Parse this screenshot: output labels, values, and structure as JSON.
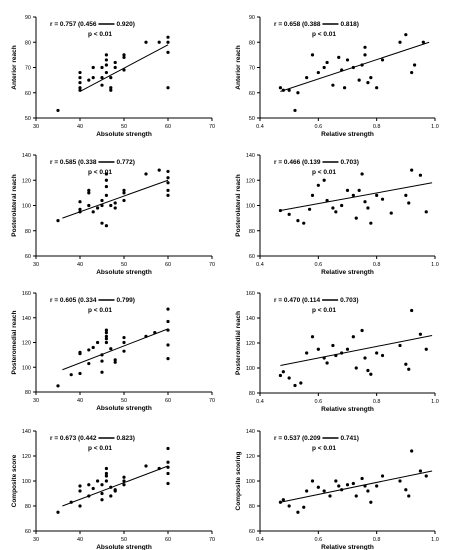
{
  "chart_data": [
    {
      "type": "scatter",
      "xlabel": "Absolute strength",
      "ylabel": "Anterior reach",
      "xlim": [
        30,
        70
      ],
      "ylim": [
        50,
        90
      ],
      "xticks": [
        30,
        40,
        50,
        60,
        70
      ],
      "yticks": [
        50,
        60,
        70,
        80,
        90
      ],
      "stat_r": "r = 0.757 (0.456",
      "stat_ci_hi": "0.920)",
      "stat_p": "p < 0.01",
      "points": [
        [
          35,
          53
        ],
        [
          40,
          61
        ],
        [
          40,
          62
        ],
        [
          40,
          64
        ],
        [
          40,
          66
        ],
        [
          40,
          68
        ],
        [
          42,
          65
        ],
        [
          43,
          66
        ],
        [
          43,
          70
        ],
        [
          45,
          63
        ],
        [
          45,
          66
        ],
        [
          45,
          70
        ],
        [
          46,
          68
        ],
        [
          46,
          71
        ],
        [
          46,
          73
        ],
        [
          46,
          75
        ],
        [
          47,
          61
        ],
        [
          47,
          62
        ],
        [
          47,
          66
        ],
        [
          48,
          70
        ],
        [
          48,
          72
        ],
        [
          50,
          74
        ],
        [
          50,
          75
        ],
        [
          50,
          69
        ],
        [
          55,
          80
        ],
        [
          58,
          80
        ],
        [
          60,
          62
        ],
        [
          60,
          76
        ],
        [
          60,
          80
        ],
        [
          60,
          82
        ]
      ],
      "fit": [
        [
          40,
          60.5
        ],
        [
          60,
          79
        ]
      ]
    },
    {
      "type": "scatter",
      "xlabel": "Relative strength",
      "ylabel": "Anterior reach",
      "xlim": [
        0.4,
        1.0
      ],
      "ylim": [
        50,
        90
      ],
      "xticks": [
        0.4,
        0.6,
        0.8,
        1.0
      ],
      "yticks": [
        50,
        60,
        70,
        80,
        90
      ],
      "stat_r": "r = 0.658 (0.388",
      "stat_ci_hi": "0.818)",
      "stat_p": "p < 0.01",
      "points": [
        [
          0.47,
          62
        ],
        [
          0.48,
          61
        ],
        [
          0.5,
          61
        ],
        [
          0.52,
          53
        ],
        [
          0.53,
          60
        ],
        [
          0.56,
          66
        ],
        [
          0.58,
          75
        ],
        [
          0.6,
          68
        ],
        [
          0.62,
          70
        ],
        [
          0.63,
          72
        ],
        [
          0.65,
          63
        ],
        [
          0.67,
          74
        ],
        [
          0.68,
          69
        ],
        [
          0.69,
          62
        ],
        [
          0.7,
          73
        ],
        [
          0.72,
          70
        ],
        [
          0.74,
          65
        ],
        [
          0.75,
          71
        ],
        [
          0.76,
          78
        ],
        [
          0.76,
          75
        ],
        [
          0.77,
          64
        ],
        [
          0.78,
          66
        ],
        [
          0.8,
          62
        ],
        [
          0.82,
          73
        ],
        [
          0.88,
          80
        ],
        [
          0.9,
          83
        ],
        [
          0.92,
          68
        ],
        [
          0.93,
          71
        ],
        [
          0.96,
          80
        ]
      ],
      "fit": [
        [
          0.47,
          60.5
        ],
        [
          0.98,
          80
        ]
      ]
    },
    {
      "type": "scatter",
      "xlabel": "Absolute strength",
      "ylabel": "Posterolateral reach",
      "xlim": [
        30,
        70
      ],
      "ylim": [
        60,
        140
      ],
      "xticks": [
        30,
        40,
        50,
        60,
        70
      ],
      "yticks": [
        60,
        80,
        100,
        120,
        140
      ],
      "stat_r": "r = 0.585 (0.338",
      "stat_ci_hi": "0.772)",
      "stat_p": "p < 0.01",
      "points": [
        [
          35,
          88
        ],
        [
          40,
          95
        ],
        [
          40,
          97
        ],
        [
          40,
          103
        ],
        [
          42,
          110
        ],
        [
          42,
          112
        ],
        [
          42,
          100
        ],
        [
          43,
          95
        ],
        [
          44,
          98
        ],
        [
          45,
          86
        ],
        [
          45,
          100
        ],
        [
          45,
          104
        ],
        [
          46,
          84
        ],
        [
          46,
          108
        ],
        [
          46,
          115
        ],
        [
          46,
          120
        ],
        [
          46,
          125
        ],
        [
          47,
          100
        ],
        [
          48,
          98
        ],
        [
          48,
          102
        ],
        [
          50,
          104
        ],
        [
          50,
          110
        ],
        [
          50,
          112
        ],
        [
          55,
          125
        ],
        [
          58,
          128
        ],
        [
          60,
          108
        ],
        [
          60,
          112
        ],
        [
          60,
          118
        ],
        [
          60,
          122
        ],
        [
          60,
          127
        ]
      ],
      "fit": [
        [
          36,
          90
        ],
        [
          60,
          120
        ]
      ]
    },
    {
      "type": "scatter",
      "xlabel": "Relative strength",
      "ylabel": "Posterolateral reach",
      "xlim": [
        0.4,
        1.0
      ],
      "ylim": [
        60,
        140
      ],
      "xticks": [
        0.4,
        0.6,
        0.8,
        1.0
      ],
      "yticks": [
        60,
        80,
        100,
        120,
        140
      ],
      "stat_r": "r = 0.466 (0.139",
      "stat_ci_hi": "0.703)",
      "stat_p": "p < 0.01",
      "points": [
        [
          0.47,
          96
        ],
        [
          0.5,
          93
        ],
        [
          0.53,
          88
        ],
        [
          0.55,
          86
        ],
        [
          0.57,
          97
        ],
        [
          0.58,
          108
        ],
        [
          0.6,
          116
        ],
        [
          0.62,
          120
        ],
        [
          0.63,
          104
        ],
        [
          0.65,
          98
        ],
        [
          0.66,
          95
        ],
        [
          0.68,
          100
        ],
        [
          0.7,
          112
        ],
        [
          0.72,
          108
        ],
        [
          0.73,
          90
        ],
        [
          0.74,
          112
        ],
        [
          0.75,
          125
        ],
        [
          0.76,
          103
        ],
        [
          0.77,
          98
        ],
        [
          0.78,
          86
        ],
        [
          0.8,
          108
        ],
        [
          0.82,
          105
        ],
        [
          0.85,
          94
        ],
        [
          0.9,
          108
        ],
        [
          0.91,
          102
        ],
        [
          0.92,
          128
        ],
        [
          0.95,
          124
        ],
        [
          0.97,
          95
        ]
      ],
      "fit": [
        [
          0.47,
          96
        ],
        [
          0.99,
          118
        ]
      ]
    },
    {
      "type": "scatter",
      "xlabel": "Absolute strength",
      "ylabel": "Posteromedial reach",
      "xlim": [
        30,
        70
      ],
      "ylim": [
        80,
        160
      ],
      "xticks": [
        30,
        40,
        50,
        60,
        70
      ],
      "yticks": [
        80,
        100,
        120,
        140,
        160
      ],
      "stat_r": "r = 0.605 (0.334",
      "stat_ci_hi": "0.799)",
      "stat_p": "p < 0.01",
      "points": [
        [
          35,
          85
        ],
        [
          38,
          94
        ],
        [
          40,
          95
        ],
        [
          40,
          111
        ],
        [
          40,
          112
        ],
        [
          42,
          103
        ],
        [
          42,
          114
        ],
        [
          43,
          116
        ],
        [
          44,
          120
        ],
        [
          45,
          96
        ],
        [
          45,
          105
        ],
        [
          45,
          110
        ],
        [
          46,
          120
        ],
        [
          46,
          123
        ],
        [
          46,
          125
        ],
        [
          46,
          128
        ],
        [
          46,
          130
        ],
        [
          47,
          115
        ],
        [
          48,
          104
        ],
        [
          48,
          106
        ],
        [
          50,
          113
        ],
        [
          50,
          120
        ],
        [
          50,
          124
        ],
        [
          55,
          125
        ],
        [
          57,
          128
        ],
        [
          60,
          107
        ],
        [
          60,
          118
        ],
        [
          60,
          130
        ],
        [
          60,
          137
        ],
        [
          60,
          147
        ]
      ],
      "fit": [
        [
          36,
          98
        ],
        [
          60,
          131
        ]
      ]
    },
    {
      "type": "scatter",
      "xlabel": "Relative strength",
      "ylabel": "Posteromedial reach",
      "xlim": [
        0.4,
        1.0
      ],
      "ylim": [
        80,
        160
      ],
      "xticks": [
        0.4,
        0.6,
        0.8,
        1.0
      ],
      "yticks": [
        80,
        100,
        120,
        140,
        160
      ],
      "stat_r": "r = 0.470 (0.114",
      "stat_ci_hi": "0.703)",
      "stat_p": "p < 0.01",
      "points": [
        [
          0.47,
          94
        ],
        [
          0.48,
          97
        ],
        [
          0.5,
          92
        ],
        [
          0.52,
          86
        ],
        [
          0.54,
          88
        ],
        [
          0.56,
          112
        ],
        [
          0.58,
          125
        ],
        [
          0.6,
          115
        ],
        [
          0.62,
          108
        ],
        [
          0.63,
          104
        ],
        [
          0.65,
          118
        ],
        [
          0.66,
          110
        ],
        [
          0.68,
          112
        ],
        [
          0.7,
          115
        ],
        [
          0.72,
          125
        ],
        [
          0.73,
          100
        ],
        [
          0.75,
          130
        ],
        [
          0.76,
          108
        ],
        [
          0.77,
          98
        ],
        [
          0.78,
          95
        ],
        [
          0.8,
          112
        ],
        [
          0.82,
          110
        ],
        [
          0.88,
          118
        ],
        [
          0.9,
          103
        ],
        [
          0.91,
          99
        ],
        [
          0.92,
          146
        ],
        [
          0.95,
          127
        ],
        [
          0.97,
          115
        ]
      ],
      "fit": [
        [
          0.47,
          102
        ],
        [
          0.99,
          126
        ]
      ]
    },
    {
      "type": "scatter",
      "xlabel": "Absolute strength",
      "ylabel": "Composite score",
      "xlim": [
        30,
        70
      ],
      "ylim": [
        60,
        140
      ],
      "xticks": [
        30,
        40,
        50,
        60,
        70
      ],
      "yticks": [
        60,
        80,
        100,
        120,
        140
      ],
      "stat_r": "r = 0.673 (0.442",
      "stat_ci_hi": "0.823)",
      "stat_p": "p < 0.01",
      "points": [
        [
          35,
          75
        ],
        [
          38,
          83
        ],
        [
          40,
          80
        ],
        [
          40,
          92
        ],
        [
          40,
          96
        ],
        [
          42,
          88
        ],
        [
          42,
          97
        ],
        [
          43,
          94
        ],
        [
          44,
          100
        ],
        [
          45,
          85
        ],
        [
          45,
          90
        ],
        [
          45,
          97
        ],
        [
          46,
          100
        ],
        [
          46,
          104
        ],
        [
          46,
          106
        ],
        [
          46,
          110
        ],
        [
          47,
          95
        ],
        [
          47,
          88
        ],
        [
          48,
          93
        ],
        [
          48,
          92
        ],
        [
          50,
          97
        ],
        [
          50,
          100
        ],
        [
          50,
          103
        ],
        [
          55,
          112
        ],
        [
          58,
          110
        ],
        [
          60,
          98
        ],
        [
          60,
          106
        ],
        [
          60,
          111
        ],
        [
          60,
          115
        ],
        [
          60,
          126
        ]
      ],
      "fit": [
        [
          36,
          80
        ],
        [
          60,
          112
        ]
      ]
    },
    {
      "type": "scatter",
      "xlabel": "Relative strength",
      "ylabel": "Composite scoring",
      "xlim": [
        0.4,
        1.0
      ],
      "ylim": [
        60,
        140
      ],
      "xticks": [
        0.4,
        0.6,
        0.8,
        1.0
      ],
      "yticks": [
        60,
        80,
        100,
        120,
        140
      ],
      "stat_r": "r = 0.537 (0.209",
      "stat_ci_hi": "0.741)",
      "stat_p": "p < 0.01",
      "points": [
        [
          0.47,
          83
        ],
        [
          0.48,
          85
        ],
        [
          0.5,
          80
        ],
        [
          0.53,
          75
        ],
        [
          0.55,
          79
        ],
        [
          0.56,
          92
        ],
        [
          0.58,
          100
        ],
        [
          0.6,
          95
        ],
        [
          0.62,
          92
        ],
        [
          0.64,
          88
        ],
        [
          0.66,
          100
        ],
        [
          0.67,
          96
        ],
        [
          0.68,
          93
        ],
        [
          0.7,
          97
        ],
        [
          0.72,
          98
        ],
        [
          0.73,
          88
        ],
        [
          0.75,
          102
        ],
        [
          0.76,
          96
        ],
        [
          0.77,
          92
        ],
        [
          0.78,
          83
        ],
        [
          0.8,
          96
        ],
        [
          0.82,
          104
        ],
        [
          0.88,
          100
        ],
        [
          0.9,
          93
        ],
        [
          0.91,
          88
        ],
        [
          0.92,
          124
        ],
        [
          0.95,
          108
        ],
        [
          0.97,
          104
        ]
      ],
      "fit": [
        [
          0.47,
          83
        ],
        [
          0.99,
          108
        ]
      ]
    }
  ]
}
